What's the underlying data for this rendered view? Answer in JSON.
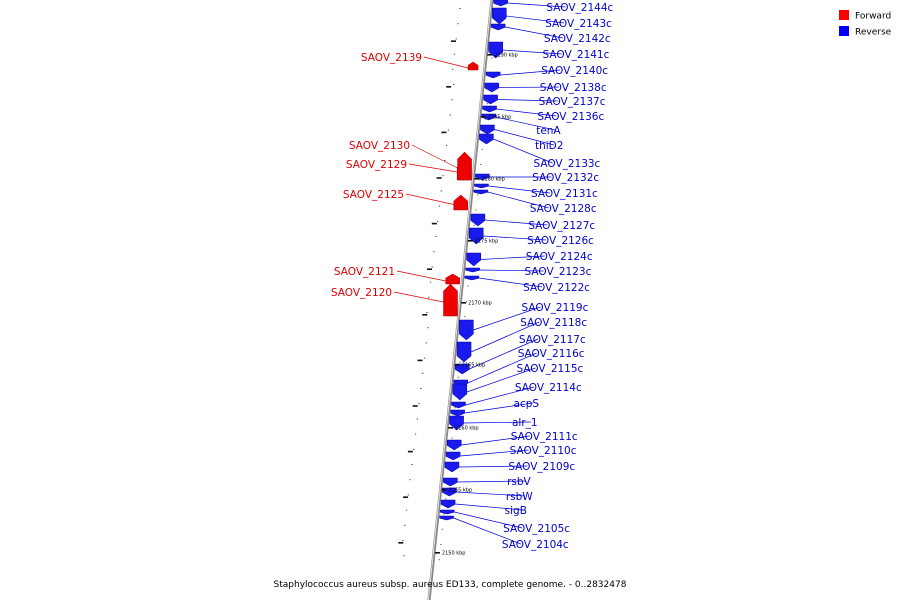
{
  "caption": "Staphylococcus aureus subsp. aureus ED133, complete genome. - 0..2832478",
  "legend": [
    {
      "label": "Forward",
      "color": "#ff0000"
    },
    {
      "label": "Reverse",
      "color": "#0000ff"
    }
  ],
  "forward_genes": [
    "SAOV_2139",
    "SAOV_2130",
    "SAOV_2129",
    "SAOV_2125",
    "SAOV_2121",
    "SAOV_2120"
  ],
  "reverse_genes": [
    "SAOV_2144c",
    "SAOV_2143c",
    "SAOV_2142c",
    "SAOV_2141c",
    "SAOV_2140c",
    "SAOV_2138c",
    "SAOV_2137c",
    "SAOV_2136c",
    "tenA",
    "thiD2",
    "SAOV_2133c",
    "SAOV_2132c",
    "SAOV_2131c",
    "SAOV_2128c",
    "SAOV_2127c",
    "SAOV_2126c",
    "SAOV_2124c",
    "SAOV_2123c",
    "SAOV_2122c",
    "SAOV_2119c",
    "SAOV_2118c",
    "SAOV_2117c",
    "SAOV_2116c",
    "SAOV_2115c",
    "SAOV_2114c",
    "acpS",
    "alr_1",
    "SAOV_2111c",
    "SAOV_2110c",
    "SAOV_2109c",
    "rsbV",
    "rsbW",
    "sigB",
    "SAOV_2105c",
    "SAOV_2104c"
  ],
  "scale_ticks": [
    "2190 kbp",
    "2185 kbp",
    "2180 kbp",
    "2175 kbp",
    "2170 kbp",
    "2165 kbp",
    "2160 kbp",
    "2155 kbp",
    "2150 kbp"
  ]
}
